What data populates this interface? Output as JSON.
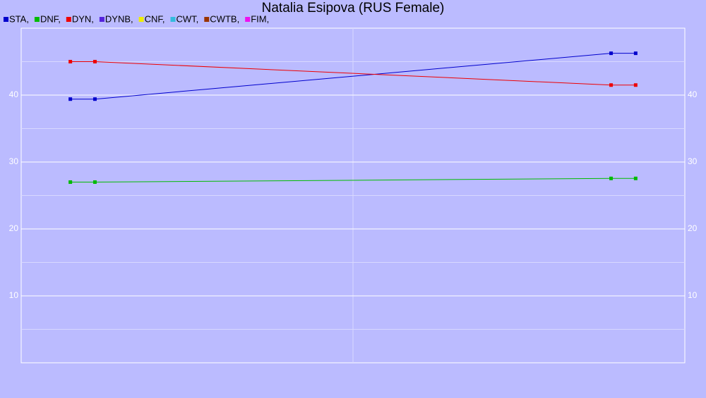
{
  "chart_data": {
    "type": "line",
    "title": "Natalia Esipova (RUS Female)",
    "x": [
      2,
      3,
      24,
      25
    ],
    "xlim": [
      0,
      27
    ],
    "xticks": [
      13.5
    ],
    "ylim": [
      0,
      50
    ],
    "yticks": [
      10,
      20,
      30,
      40
    ],
    "minor_yticks": [
      5,
      15,
      25,
      35,
      45
    ],
    "grid": true,
    "legend": "top-left",
    "series": [
      {
        "name": "STA,",
        "color": "#0000cc",
        "values": [
          39.4,
          39.4,
          46.25,
          46.25
        ]
      },
      {
        "name": "DNF,",
        "color": "#00bb00",
        "values": [
          27.0,
          27.0,
          27.55,
          27.55
        ]
      },
      {
        "name": "DYN,",
        "color": "#ee0000",
        "values": [
          45.0,
          45.0,
          41.5,
          41.5
        ]
      },
      {
        "name": "DYNB,",
        "color": "#5522dd",
        "values": [
          null,
          null,
          null,
          null
        ]
      },
      {
        "name": "CNF,",
        "color": "#eeee00",
        "values": [
          null,
          null,
          null,
          null
        ]
      },
      {
        "name": "CWT,",
        "color": "#33bbdd",
        "values": [
          null,
          null,
          null,
          null
        ]
      },
      {
        "name": "CWTB,",
        "color": "#993300",
        "values": [
          null,
          null,
          null,
          null
        ]
      },
      {
        "name": "FIM,",
        "color": "#ee11ee",
        "values": [
          null,
          null,
          null,
          null
        ]
      }
    ]
  }
}
